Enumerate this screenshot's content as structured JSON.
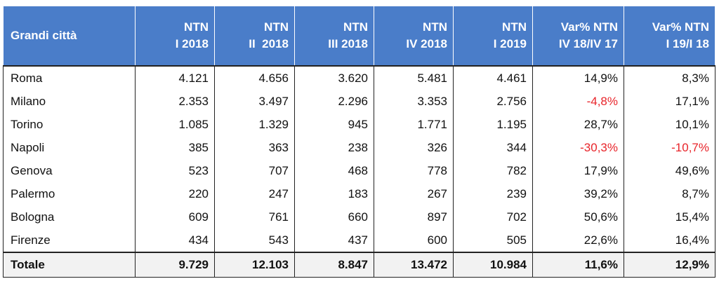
{
  "colors": {
    "header_bg": "#4a7dc9",
    "header_text": "#ffffff",
    "negative": "#e8242a",
    "total_bg": "#f2f2f2"
  },
  "headers": [
    {
      "line1": "Grandi città",
      "line2": ""
    },
    {
      "line1": "NTN",
      "line2": "I 2018"
    },
    {
      "line1": "NTN",
      "line2": "II  2018"
    },
    {
      "line1": "NTN",
      "line2": "III 2018"
    },
    {
      "line1": "NTN",
      "line2": "IV 2018"
    },
    {
      "line1": "NTN",
      "line2": "I 2019"
    },
    {
      "line1": "Var% NTN",
      "line2": "IV 18/IV 17"
    },
    {
      "line1": "Var% NTN",
      "line2": "I 19/I 18"
    }
  ],
  "rows": [
    {
      "city": "Roma",
      "values": [
        "4.121",
        "4.656",
        "3.620",
        "5.481",
        "4.461",
        "14,9%",
        "8,3%"
      ]
    },
    {
      "city": "Milano",
      "values": [
        "2.353",
        "3.497",
        "2.296",
        "3.353",
        "2.756",
        "-4,8%",
        "17,1%"
      ]
    },
    {
      "city": "Torino",
      "values": [
        "1.085",
        "1.329",
        "945",
        "1.771",
        "1.195",
        "28,7%",
        "10,1%"
      ]
    },
    {
      "city": "Napoli",
      "values": [
        "385",
        "363",
        "238",
        "326",
        "344",
        "-30,3%",
        "-10,7%"
      ]
    },
    {
      "city": "Genova",
      "values": [
        "523",
        "707",
        "468",
        "778",
        "782",
        "17,9%",
        "49,6%"
      ]
    },
    {
      "city": "Palermo",
      "values": [
        "220",
        "247",
        "183",
        "267",
        "239",
        "39,2%",
        "8,7%"
      ]
    },
    {
      "city": "Bologna",
      "values": [
        "609",
        "761",
        "660",
        "897",
        "702",
        "50,6%",
        "15,4%"
      ]
    },
    {
      "city": "Firenze",
      "values": [
        "434",
        "543",
        "437",
        "600",
        "505",
        "22,6%",
        "16,4%"
      ]
    }
  ],
  "total": {
    "city": "Totale",
    "values": [
      "9.729",
      "12.103",
      "8.847",
      "13.472",
      "10.984",
      "11,6%",
      "12,9%"
    ]
  }
}
